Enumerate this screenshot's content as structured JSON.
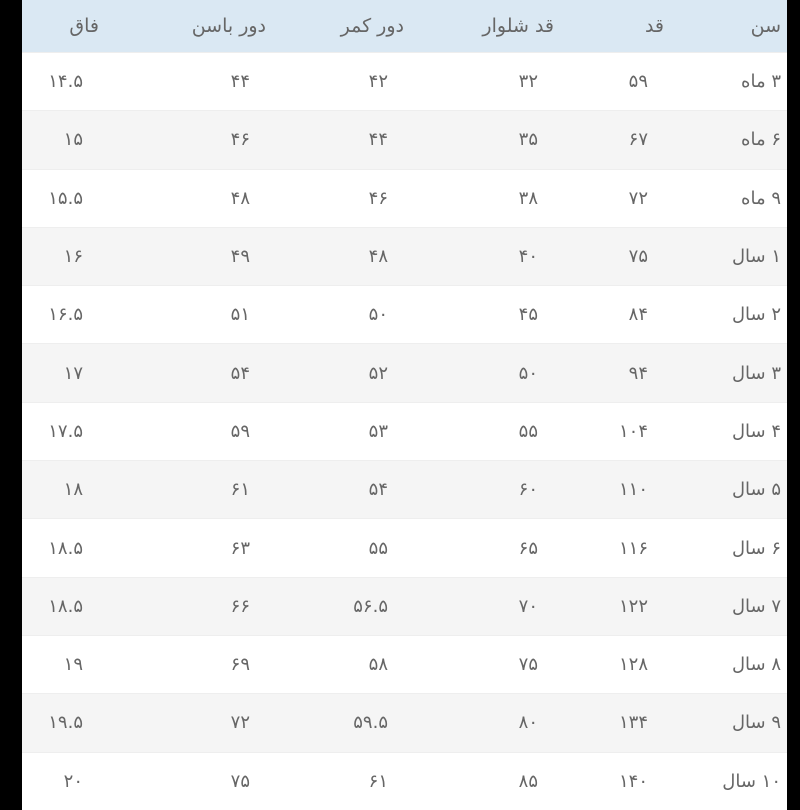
{
  "table": {
    "headers": [
      "سن",
      "قد",
      "قد شلوار",
      "دور کمر",
      "دور باسن",
      "فاق"
    ],
    "rows": [
      [
        "۳ ماه",
        "۵۹",
        "۳۲",
        "۴۲",
        "۴۴",
        "۱۴.۵"
      ],
      [
        "۶ ماه",
        "۶۷",
        "۳۵",
        "۴۴",
        "۴۶",
        "۱۵"
      ],
      [
        "۹ ماه",
        "۷۲",
        "۳۸",
        "۴۶",
        "۴۸",
        "۱۵.۵"
      ],
      [
        "۱ سال",
        "۷۵",
        "۴۰",
        "۴۸",
        "۴۹",
        "۱۶"
      ],
      [
        "۲ سال",
        "۸۴",
        "۴۵",
        "۵۰",
        "۵۱",
        "۱۶.۵"
      ],
      [
        "۳ سال",
        "۹۴",
        "۵۰",
        "۵۲",
        "۵۴",
        "۱۷"
      ],
      [
        "۴ سال",
        "۱۰۴",
        "۵۵",
        "۵۳",
        "۵۹",
        "۱۷.۵"
      ],
      [
        "۵ سال",
        "۱۱۰",
        "۶۰",
        "۵۴",
        "۶۱",
        "۱۸"
      ],
      [
        "۶ سال",
        "۱۱۶",
        "۶۵",
        "۵۵",
        "۶۳",
        "۱۸.۵"
      ],
      [
        "۷ سال",
        "۱۲۲",
        "۷۰",
        "۵۶.۵",
        "۶۶",
        "۱۸.۵"
      ],
      [
        "۸ سال",
        "۱۲۸",
        "۷۵",
        "۵۸",
        "۶۹",
        "۱۹"
      ],
      [
        "۹ سال",
        "۱۳۴",
        "۸۰",
        "۵۹.۵",
        "۷۲",
        "۱۹.۵"
      ],
      [
        "۱۰ سال",
        "۱۴۰",
        "۸۵",
        "۶۱",
        "۷۵",
        "۲۰"
      ]
    ]
  },
  "colors": {
    "header_bg": "#dae8f3",
    "stripe_bg": "#f5f5f5",
    "text": "#666666"
  }
}
